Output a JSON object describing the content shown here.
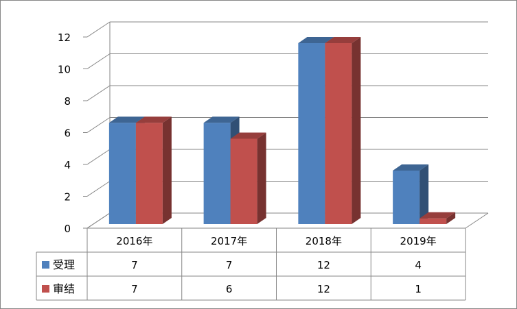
{
  "chart_data": {
    "type": "bar",
    "style": "3d-clustered-column-with-data-table",
    "categories": [
      "2016年",
      "2017年",
      "2018年",
      "2019年"
    ],
    "series": [
      {
        "name": "受理",
        "values": [
          7,
          7,
          12,
          4
        ],
        "color": "#4F81BD"
      },
      {
        "name": "审结",
        "values": [
          7,
          6,
          12,
          1
        ],
        "color": "#C0504D"
      }
    ],
    "y_ticks": [
      "0",
      "2",
      "4",
      "6",
      "8",
      "10",
      "12"
    ],
    "ylim": [
      0,
      12
    ],
    "grid": true,
    "legend": "data-table-keys",
    "title": "",
    "xlabel": "",
    "ylabel": ""
  },
  "colors": {
    "gridline": "#868686",
    "frame": "#868686",
    "axis_text": "#000000"
  }
}
